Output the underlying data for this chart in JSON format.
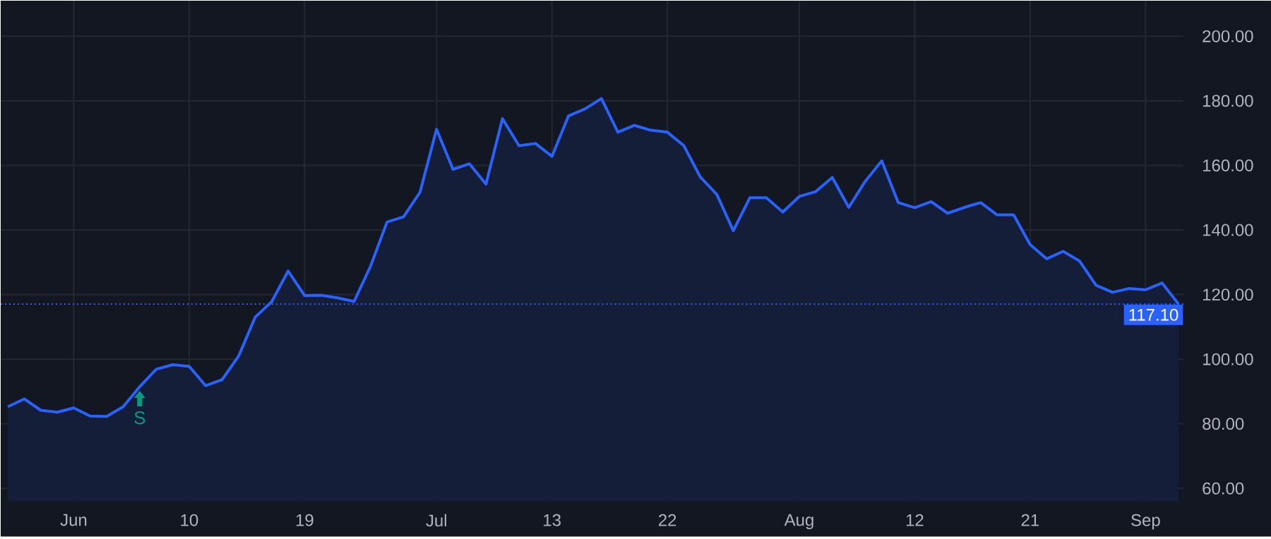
{
  "chart_data": {
    "type": "area",
    "categories": [
      null,
      null,
      null,
      null,
      "Jun",
      null,
      null,
      null,
      null,
      null,
      null,
      "10",
      null,
      null,
      null,
      null,
      null,
      null,
      "19",
      null,
      null,
      null,
      null,
      null,
      null,
      null,
      "Jul",
      null,
      null,
      null,
      null,
      null,
      null,
      "13",
      null,
      null,
      null,
      null,
      null,
      null,
      "22",
      null,
      null,
      null,
      null,
      null,
      null,
      null,
      "Aug",
      null,
      null,
      null,
      null,
      null,
      null,
      "12",
      null,
      null,
      null,
      null,
      null,
      null,
      "21",
      null,
      null,
      null,
      null,
      null,
      null,
      "Sep",
      null,
      null
    ],
    "series": [
      {
        "color": "#2962ff",
        "values": [
          85.3,
          87.7,
          84.2,
          83.6,
          84.9,
          82.4,
          82.3,
          85.3,
          91.5,
          96.9,
          98.3,
          97.8,
          91.8,
          93.7,
          101.0,
          113.0,
          117.8,
          127.3,
          119.7,
          119.8,
          119.0,
          117.9,
          128.8,
          142.5,
          144.1,
          151.7,
          171.2,
          158.8,
          160.5,
          154.2,
          174.5,
          166.1,
          166.8,
          162.8,
          175.3,
          177.5,
          180.7,
          170.3,
          172.4,
          170.9,
          170.3,
          166.1,
          156.4,
          151.0,
          139.8,
          150.0,
          150.0,
          145.6,
          150.4,
          151.9,
          156.3,
          147.0,
          155.1,
          161.4,
          148.5,
          146.9,
          148.8,
          145.2,
          147.0,
          148.5,
          144.7,
          144.7,
          135.5,
          131.1,
          133.4,
          130.4,
          122.9,
          120.7,
          121.9,
          121.5,
          123.6,
          117.1
        ]
      }
    ],
    "ylim": [
      56,
      211
    ],
    "yticks": [
      {
        "value": 60,
        "label": "60.00"
      },
      {
        "value": 80,
        "label": "80.00"
      },
      {
        "value": 100,
        "label": "100.00"
      },
      {
        "value": 120,
        "label": "120.00"
      },
      {
        "value": 140,
        "label": "140.00"
      },
      {
        "value": 160,
        "label": "160.00"
      },
      {
        "value": 180,
        "label": "180.00"
      },
      {
        "value": 200,
        "label": "200.00"
      }
    ],
    "grid": true,
    "ref_lines": [
      {
        "axis": "y",
        "value": 117.1,
        "label": "117.10",
        "color": "#2962ff",
        "line_style": "dotted"
      }
    ],
    "annotations": [
      {
        "text": "S",
        "y": 91.5
      }
    ]
  }
}
